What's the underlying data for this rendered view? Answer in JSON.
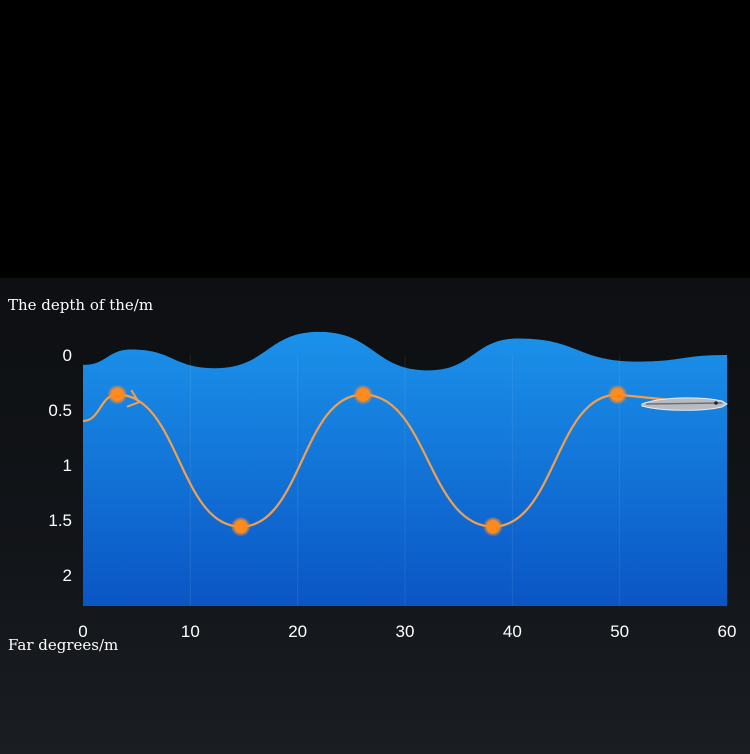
{
  "chart_data": {
    "type": "line",
    "ylabel": "The depth of the/m",
    "xlabel": "Far degrees/m",
    "xlim": [
      0,
      60
    ],
    "ylim": [
      2.3,
      0
    ],
    "y_inverted": true,
    "x_ticks": [
      "0",
      "10",
      "20",
      "30",
      "40",
      "50",
      "60"
    ],
    "y_ticks": [
      "0",
      "0.5",
      "1",
      "1.5",
      "2"
    ],
    "grid": "vertical faint",
    "series": [
      {
        "role": "lure-path",
        "color": "#f0a050",
        "x": [
          0,
          3.2,
          14.7,
          26.1,
          38.2,
          49.8
        ],
        "y": [
          0.6,
          0.36,
          1.56,
          0.36,
          1.56,
          0.36
        ],
        "markers_at": [
          1,
          2,
          3,
          4,
          5
        ]
      },
      {
        "role": "water-surface",
        "color": "#1a8fe8",
        "x": [
          0,
          4.5,
          12.3,
          22,
          32.2,
          40.6,
          51.6,
          60
        ],
        "y": [
          0.09,
          -0.05,
          0.12,
          -0.21,
          0.14,
          -0.15,
          0.06,
          0.0
        ]
      }
    ],
    "colors": {
      "water_top": "#1b92ea",
      "water_bottom": "#0a55c4",
      "path": "#f0a050",
      "marker": "#ff8a1f"
    }
  }
}
